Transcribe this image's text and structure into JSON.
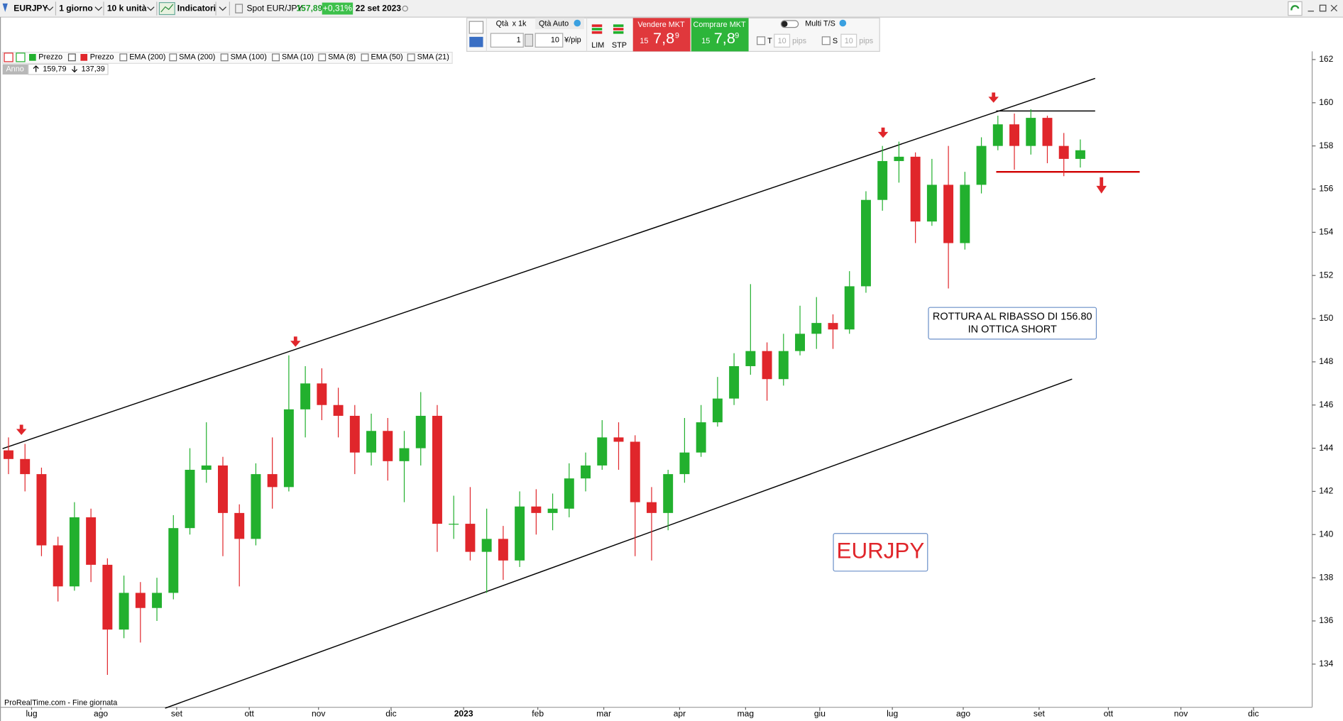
{
  "toolbar": {
    "symbol": "EURJPY",
    "timeframe": "1 giorno",
    "units": "10 k unità",
    "indicators": "Indicatori",
    "spot_label": "Spot EUR/JPY",
    "price": "157,89",
    "change": "+0,31%",
    "date": "22 set 2023"
  },
  "trade_panel": {
    "qty_label": "Qtà",
    "qty_mult": "x 1k",
    "qty_auto": "Qtà Auto",
    "qty_value": "1",
    "pip_value": "10",
    "pip_unit": "¥/pip",
    "lim": "LIM",
    "stp": "STP",
    "sell": {
      "label": "Vendere MKT",
      "big_prefix": "15",
      "main": "7,8",
      "suffix": "9"
    },
    "buy": {
      "label": "Comprare MKT",
      "big_prefix": "15",
      "main": "7,8",
      "suffix": "9"
    },
    "multi_ts": "Multi T/S",
    "t_label": "T",
    "t_value": "10",
    "t_unit": "pips",
    "s_label": "S",
    "s_value": "10",
    "s_unit": "pips"
  },
  "legend_bar": {
    "items": [
      "Prezzo",
      "Prezzo",
      "EMA (200)",
      "SMA (200)",
      "SMA (100)",
      "SMA (10)",
      "SMA (8)",
      "EMA (50)",
      "SMA (21)"
    ],
    "period": "Anno",
    "high": "159,79",
    "low": "137,39"
  },
  "chart_data": {
    "type": "candlestick",
    "up_color": "#22b02e",
    "down_color": "#e0262b",
    "categories": [
      null,
      null,
      null,
      null,
      null,
      null,
      null,
      null,
      null,
      null,
      null,
      null,
      null,
      null,
      null,
      null,
      null,
      null,
      null,
      null,
      null,
      null,
      null,
      null,
      null,
      null,
      null,
      null,
      null,
      null,
      null,
      null,
      null,
      null,
      null,
      null,
      null,
      null,
      null,
      null,
      null,
      null,
      null,
      null,
      null,
      null,
      null,
      null,
      null,
      null,
      null,
      null,
      null,
      null,
      null,
      null,
      null,
      null,
      null,
      null,
      null,
      null,
      null,
      null,
      null,
      null
    ],
    "open": [
      143.9,
      143.5,
      142.8,
      139.5,
      137.6,
      140.8,
      138.6,
      135.6,
      137.3,
      136.6,
      137.3,
      140.3,
      143.0,
      143.2,
      141.0,
      139.8,
      142.8,
      142.2,
      145.8,
      147.0,
      146.0,
      145.5,
      143.8,
      144.8,
      143.4,
      144.0,
      145.5,
      140.5,
      140.5,
      139.2,
      139.8,
      138.8,
      141.3,
      141.0,
      141.2,
      142.6,
      143.2,
      144.5,
      144.3,
      141.5,
      141.0,
      142.8,
      143.8,
      145.2,
      146.3,
      147.8,
      148.5,
      147.2,
      148.5,
      149.3,
      149.8,
      149.5,
      151.5,
      155.5,
      157.3,
      157.5,
      154.5,
      156.2,
      153.5,
      156.2,
      158.0,
      159.0,
      158.0,
      159.3,
      158.0,
      157.4
    ],
    "high": [
      144.5,
      144.2,
      143.1,
      139.9,
      141.5,
      141.2,
      138.9,
      138.1,
      137.8,
      138.0,
      140.9,
      144.0,
      145.2,
      143.6,
      141.4,
      143.3,
      144.5,
      148.3,
      147.8,
      147.7,
      146.8,
      146.0,
      145.6,
      145.4,
      144.8,
      146.6,
      146.0,
      141.8,
      142.2,
      141.2,
      140.4,
      142.0,
      142.1,
      141.9,
      143.3,
      143.8,
      145.3,
      145.2,
      144.6,
      142.2,
      143.0,
      145.4,
      146.0,
      147.3,
      148.4,
      151.6,
      148.9,
      149.3,
      150.6,
      151.0,
      150.2,
      152.2,
      155.9,
      158.0,
      158.2,
      157.7,
      157.4,
      158.0,
      156.8,
      158.4,
      159.4,
      159.5,
      159.7,
      159.4,
      158.6,
      158.3
    ],
    "low": [
      142.8,
      142.0,
      139.0,
      136.9,
      137.4,
      137.8,
      133.5,
      135.2,
      135.0,
      136.0,
      137.0,
      140.0,
      142.4,
      139.0,
      137.6,
      139.5,
      141.2,
      142.0,
      144.5,
      145.3,
      144.5,
      142.8,
      143.2,
      142.5,
      141.5,
      143.2,
      139.2,
      139.8,
      138.8,
      137.3,
      137.9,
      138.5,
      140.0,
      140.2,
      140.8,
      142.0,
      143.0,
      143.0,
      139.0,
      138.8,
      140.2,
      142.4,
      143.6,
      145.0,
      146.0,
      147.4,
      146.2,
      146.9,
      148.3,
      148.6,
      148.6,
      149.3,
      151.2,
      155.0,
      156.3,
      153.5,
      154.3,
      151.4,
      153.2,
      155.8,
      157.8,
      156.9,
      157.6,
      157.2,
      156.6,
      157.0
    ],
    "close": [
      143.5,
      142.8,
      139.5,
      137.6,
      140.8,
      138.6,
      135.6,
      137.3,
      136.6,
      137.3,
      140.3,
      143.0,
      143.2,
      141.0,
      139.8,
      142.8,
      142.2,
      145.8,
      147.0,
      146.0,
      145.5,
      143.8,
      144.8,
      143.4,
      144.0,
      145.5,
      140.5,
      140.5,
      139.2,
      139.8,
      138.8,
      141.3,
      141.0,
      141.2,
      142.6,
      143.2,
      144.5,
      144.3,
      141.5,
      141.0,
      142.8,
      143.8,
      145.2,
      146.3,
      147.8,
      148.5,
      147.2,
      148.5,
      149.3,
      149.8,
      149.5,
      151.5,
      155.5,
      157.3,
      157.5,
      154.5,
      156.2,
      153.5,
      156.2,
      158.0,
      159.0,
      158.0,
      159.3,
      158.0,
      157.4,
      157.8
    ],
    "xlim": [
      -0.36,
      79.06
    ],
    "xticks": [
      {
        "value": 1.4,
        "label": "lug"
      },
      {
        "value": 5.6,
        "label": "ago"
      },
      {
        "value": 10.2,
        "label": "set"
      },
      {
        "value": 14.6,
        "label": "ott"
      },
      {
        "value": 18.8,
        "label": "nov"
      },
      {
        "value": 23.2,
        "label": "dic"
      },
      {
        "value": 27.6,
        "label": "2023"
      },
      {
        "value": 32.1,
        "label": "feb"
      },
      {
        "value": 36.1,
        "label": "mar"
      },
      {
        "value": 40.7,
        "label": "apr"
      },
      {
        "value": 44.7,
        "label": "mag"
      },
      {
        "value": 49.2,
        "label": "giu"
      },
      {
        "value": 53.6,
        "label": "lug"
      },
      {
        "value": 57.9,
        "label": "ago"
      },
      {
        "value": 62.5,
        "label": "set"
      },
      {
        "value": 66.7,
        "label": "ott"
      },
      {
        "value": 71.1,
        "label": "nov"
      },
      {
        "value": 75.5,
        "label": "dic"
      }
    ],
    "ylim": [
      132,
      162.3
    ],
    "yticks": [
      134,
      136,
      138,
      140,
      142,
      144,
      146,
      148,
      150,
      152,
      154,
      156,
      158,
      160,
      162
    ],
    "grid": false,
    "lines": [
      {
        "x": [
          -0.36,
          65.9
        ],
        "y": [
          143.98,
          161.13
        ],
        "color": "#000000"
      },
      {
        "x": [
          9.5,
          64.5
        ],
        "y": [
          131.96,
          147.2
        ],
        "color": "#000000"
      },
      {
        "x": [
          59.9,
          65.9
        ],
        "y": [
          159.62,
          159.62
        ],
        "color": "#000000"
      },
      {
        "x": [
          59.9,
          68.6
        ],
        "y": [
          156.8,
          156.8
        ],
        "color": "#d00000"
      }
    ],
    "annotations": [
      "ROTTURA AL RIBASSO DI 156.80",
      "IN OTTICA SHORT"
    ],
    "watermark": "EURJPY",
    "source": "ProRealTime.com - Fine giornata"
  }
}
